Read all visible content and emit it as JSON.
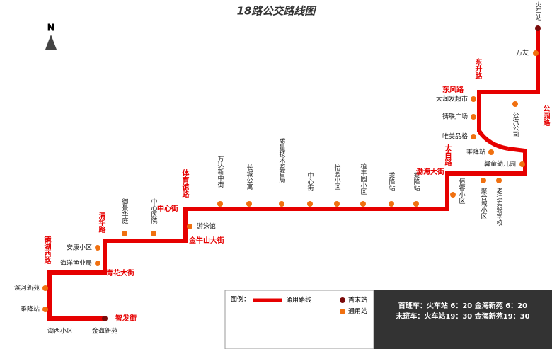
{
  "title": "18路公交路线图",
  "north": "N",
  "stops": [
    {
      "label": "火车站"
    },
    {
      "label": "万友"
    },
    {
      "label": "公汽公司"
    },
    {
      "label": "大润发超市"
    },
    {
      "label": "铸联广场"
    },
    {
      "label": "唯美品格"
    },
    {
      "label": "乘降站"
    },
    {
      "label": "馨童幼儿园"
    },
    {
      "label": "聚合城小区"
    },
    {
      "label": "老边实验学校"
    },
    {
      "label": "恒睿小区"
    },
    {
      "label": "乘降站"
    },
    {
      "label": "乘降站"
    },
    {
      "label": "植丰园小区"
    },
    {
      "label": "怡园小区"
    },
    {
      "label": "中心街"
    },
    {
      "label": "质量技术监督局"
    },
    {
      "label": "长城公寓"
    },
    {
      "label": "万达新中街"
    },
    {
      "label": "游泳馆"
    },
    {
      "label": "中心医院"
    },
    {
      "label": "御景华庭"
    },
    {
      "label": "安康小区"
    },
    {
      "label": "海洋渔业局"
    },
    {
      "label": "滨河新苑"
    },
    {
      "label": "乘降站"
    },
    {
      "label": "湖西小区"
    },
    {
      "label": "金海新苑"
    }
  ],
  "streets": [
    {
      "label": "东升路"
    },
    {
      "label": "东风路"
    },
    {
      "label": "公园路"
    },
    {
      "label": "太白路"
    },
    {
      "label": "渤海大街"
    },
    {
      "label": "体育馆路"
    },
    {
      "label": "中心街"
    },
    {
      "label": "金牛山大街"
    },
    {
      "label": "清华路"
    },
    {
      "label": "青花大街"
    },
    {
      "label": "镜湖西路"
    },
    {
      "label": "智发街"
    }
  ],
  "legend": {
    "title": "图例：",
    "route": "通用路线",
    "terminal": "首末站",
    "stop": "通用站"
  },
  "timetable": [
    "首班车：火车站 6：20  金海新苑 6：20",
    "末班车：火车站19：30  金海新苑19：30"
  ]
}
